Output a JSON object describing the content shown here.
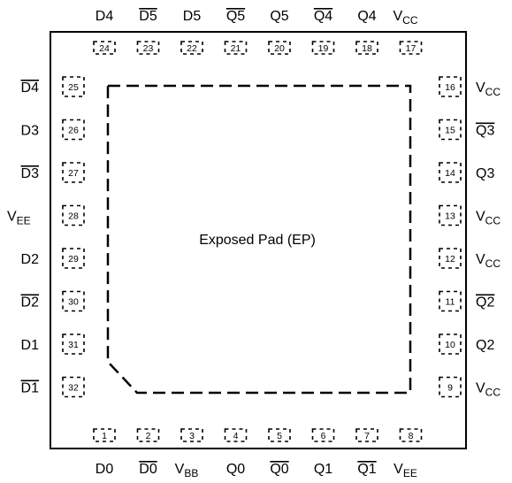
{
  "package": {
    "exposed_pad_label": "Exposed Pad (EP)"
  },
  "pins": {
    "top": [
      {
        "num": "24",
        "name": "D4",
        "sub": "",
        "bar": false
      },
      {
        "num": "23",
        "name": "D5",
        "sub": "",
        "bar": true
      },
      {
        "num": "22",
        "name": "D5",
        "sub": "",
        "bar": false
      },
      {
        "num": "21",
        "name": "Q5",
        "sub": "",
        "bar": true
      },
      {
        "num": "20",
        "name": "Q5",
        "sub": "",
        "bar": false
      },
      {
        "num": "19",
        "name": "Q4",
        "sub": "",
        "bar": true
      },
      {
        "num": "18",
        "name": "Q4",
        "sub": "",
        "bar": false
      },
      {
        "num": "17",
        "name": "V",
        "sub": "CC",
        "bar": false
      }
    ],
    "bottom": [
      {
        "num": "1",
        "name": "D0",
        "sub": "",
        "bar": false
      },
      {
        "num": "2",
        "name": "D0",
        "sub": "",
        "bar": true
      },
      {
        "num": "3",
        "name": "V",
        "sub": "BB",
        "bar": false
      },
      {
        "num": "4",
        "name": "Q0",
        "sub": "",
        "bar": false
      },
      {
        "num": "5",
        "name": "Q0",
        "sub": "",
        "bar": true
      },
      {
        "num": "6",
        "name": "Q1",
        "sub": "",
        "bar": false
      },
      {
        "num": "7",
        "name": "Q1",
        "sub": "",
        "bar": true
      },
      {
        "num": "8",
        "name": "V",
        "sub": "EE",
        "bar": false
      }
    ],
    "left": [
      {
        "num": "25",
        "name": "D4",
        "sub": "",
        "bar": true
      },
      {
        "num": "26",
        "name": "D3",
        "sub": "",
        "bar": false
      },
      {
        "num": "27",
        "name": "D3",
        "sub": "",
        "bar": true
      },
      {
        "num": "28",
        "name": "V",
        "sub": "EE",
        "bar": false
      },
      {
        "num": "29",
        "name": "D2",
        "sub": "",
        "bar": false
      },
      {
        "num": "30",
        "name": "D2",
        "sub": "",
        "bar": true
      },
      {
        "num": "31",
        "name": "D1",
        "sub": "",
        "bar": false
      },
      {
        "num": "32",
        "name": "D1",
        "sub": "",
        "bar": true
      }
    ],
    "right": [
      {
        "num": "16",
        "name": "V",
        "sub": "CC",
        "bar": false
      },
      {
        "num": "15",
        "name": "Q3",
        "sub": "",
        "bar": true
      },
      {
        "num": "14",
        "name": "Q3",
        "sub": "",
        "bar": false
      },
      {
        "num": "13",
        "name": "V",
        "sub": "CC",
        "bar": false
      },
      {
        "num": "12",
        "name": "V",
        "sub": "CC",
        "bar": false
      },
      {
        "num": "11",
        "name": "Q2",
        "sub": "",
        "bar": true
      },
      {
        "num": "10",
        "name": "Q2",
        "sub": "",
        "bar": false
      },
      {
        "num": "9",
        "name": "V",
        "sub": "CC",
        "bar": false
      }
    ]
  }
}
